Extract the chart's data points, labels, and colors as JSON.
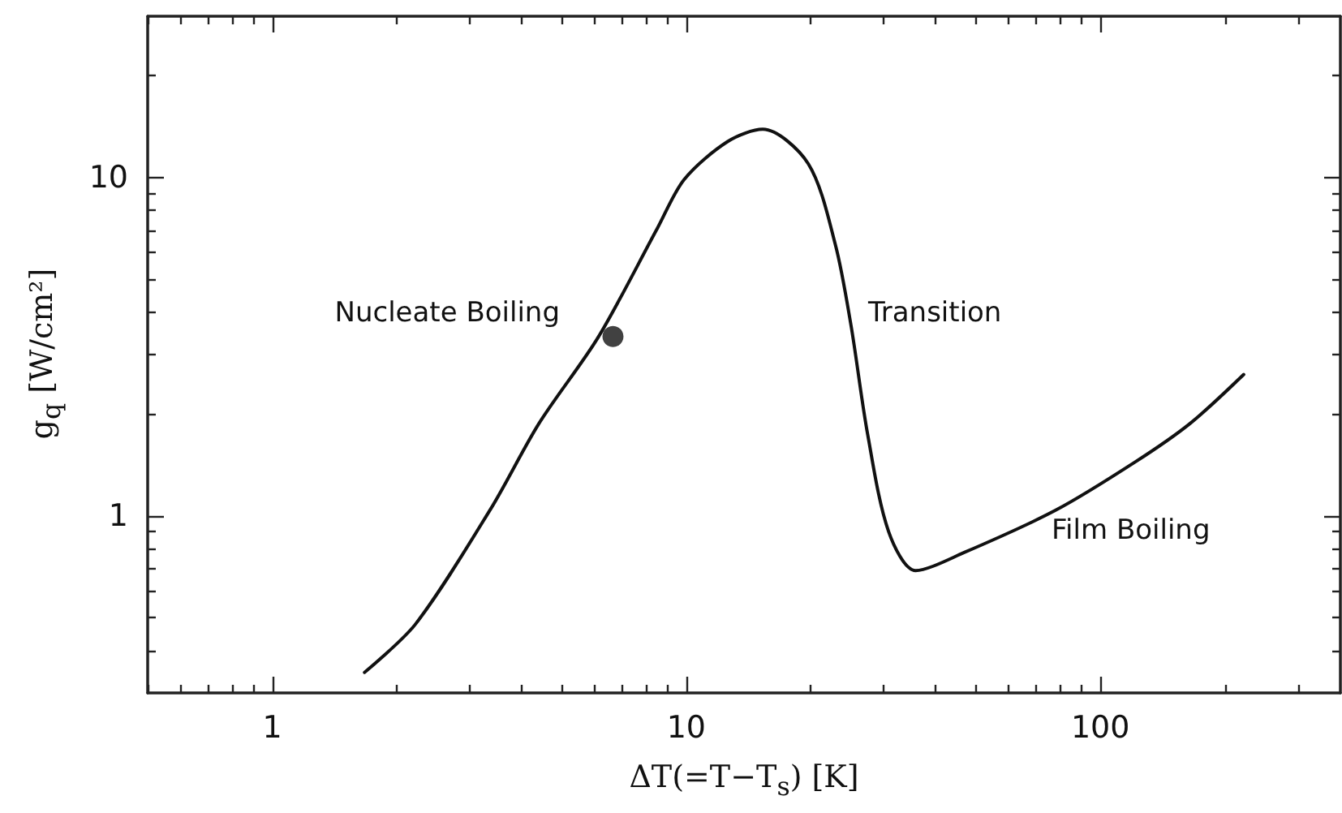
{
  "chart_data": {
    "type": "line",
    "xlabel": "ΔT(=T−T$_{s}$) [K]",
    "ylabel": "g$_{q}$ [W/cm²]",
    "log": "xy",
    "xlim": [
      0.5,
      380
    ],
    "ylim": [
      0.3,
      30
    ],
    "xticks": [
      {
        "value": 0.5,
        "label": null
      },
      {
        "value": 0.6,
        "label": null
      },
      {
        "value": 0.7,
        "label": null
      },
      {
        "value": 0.8,
        "label": null
      },
      {
        "value": 0.9,
        "label": null
      },
      1,
      {
        "value": 2,
        "label": null
      },
      {
        "value": 3,
        "label": null
      },
      {
        "value": 4,
        "label": null
      },
      {
        "value": 5,
        "label": null
      },
      {
        "value": 6,
        "label": null
      },
      {
        "value": 7,
        "label": null
      },
      {
        "value": 8,
        "label": null
      },
      {
        "value": 9,
        "label": null
      },
      10,
      {
        "value": 20,
        "label": null
      },
      {
        "value": 30,
        "label": null
      },
      {
        "value": 40,
        "label": null
      },
      {
        "value": 50,
        "label": null
      },
      {
        "value": 60,
        "label": null
      },
      {
        "value": 70,
        "label": null
      },
      {
        "value": 80,
        "label": null
      },
      {
        "value": 90,
        "label": null
      },
      100,
      {
        "value": 200,
        "label": null
      },
      {
        "value": 300,
        "label": null
      }
    ],
    "yticks": [
      {
        "value": 0.4,
        "label": null
      },
      {
        "value": 0.5,
        "label": null
      },
      {
        "value": 0.6,
        "label": null
      },
      {
        "value": 0.7,
        "label": null
      },
      {
        "value": 0.8,
        "label": null
      },
      {
        "value": 0.9,
        "label": null
      },
      1,
      {
        "value": 2,
        "label": null
      },
      {
        "value": 3,
        "label": null
      },
      {
        "value": 4,
        "label": null
      },
      {
        "value": 5,
        "label": null
      },
      {
        "value": 6,
        "label": null
      },
      {
        "value": 7,
        "label": null
      },
      {
        "value": 8,
        "label": null
      },
      {
        "value": 9,
        "label": null
      },
      10,
      {
        "value": 20,
        "label": null
      }
    ],
    "grid": false,
    "series": [
      {
        "type": "line",
        "color": "#111111",
        "marker": "none",
        "line_style": "solid",
        "x": [
          1.67,
          2.22,
          3.37,
          4.41,
          6.13,
          8.52,
          9.89,
          12.6,
          15.3,
          19.7,
          22.9,
          25.0,
          27.4,
          30.8,
          35.8,
          46.9,
          78.0,
          122,
          165,
          222
        ],
        "values": [
          0.345,
          0.48,
          1.05,
          1.88,
          3.38,
          7.1,
          9.89,
          12.8,
          13.9,
          11.0,
          6.35,
          3.65,
          1.75,
          0.9,
          0.69,
          0.78,
          1.04,
          1.45,
          1.88,
          2.62
        ]
      },
      {
        "type": "scatter",
        "color": "#111111",
        "marker": "circle",
        "x": [
          6.65
        ],
        "values": [
          3.39
        ]
      }
    ],
    "annotations": [
      "Nucleate Boiling",
      "Transition",
      "Film Boiling"
    ]
  }
}
